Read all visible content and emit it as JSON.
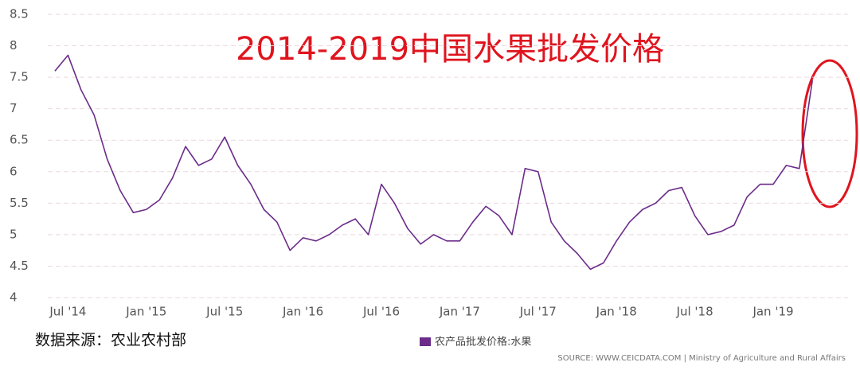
{
  "chart_data": {
    "type": "line",
    "title": "2014-2019中国水果批发价格",
    "note": "数据来源：农业农村部",
    "source": "SOURCE: WWW.CEICDATA.COM | Ministry of Agriculture and Rural Affairs",
    "categories": [
      null,
      "Jul '14",
      null,
      null,
      null,
      null,
      null,
      "Jan '15",
      null,
      null,
      null,
      null,
      null,
      "Jul '15",
      null,
      null,
      null,
      null,
      null,
      "Jan '16",
      null,
      null,
      null,
      null,
      null,
      "Jul '16",
      null,
      null,
      null,
      null,
      null,
      "Jan '17",
      null,
      null,
      null,
      null,
      null,
      "Jul '17",
      null,
      null,
      null,
      null,
      null,
      "Jan '18",
      null,
      null,
      null,
      null,
      null,
      "Jul '18",
      null,
      null,
      null,
      null,
      null,
      "Jan '19",
      null,
      null,
      null
    ],
    "series": [
      {
        "name": "农产品批发价格:水果",
        "color": "#6b2c8a",
        "values": [
          7.6,
          7.85,
          7.3,
          6.9,
          6.2,
          5.7,
          5.35,
          5.4,
          5.55,
          5.9,
          6.4,
          6.1,
          6.2,
          6.55,
          6.1,
          5.8,
          5.4,
          5.2,
          4.75,
          4.95,
          4.9,
          5.0,
          5.15,
          5.25,
          5.0,
          5.8,
          5.5,
          5.1,
          4.85,
          5.0,
          4.9,
          4.9,
          5.2,
          5.45,
          5.3,
          5.0,
          6.05,
          6.0,
          5.2,
          4.9,
          4.7,
          4.45,
          4.55,
          4.9,
          5.2,
          5.4,
          5.5,
          5.7,
          5.75,
          5.3,
          5.0,
          5.05,
          5.15,
          5.6,
          5.8,
          5.8,
          6.1,
          6.05,
          7.45
        ]
      }
    ],
    "ylim": [
      4,
      8.5
    ],
    "yticks": [
      4,
      4.5,
      5,
      5.5,
      6,
      6.5,
      7,
      7.5,
      8,
      8.5
    ],
    "grid": true
  }
}
